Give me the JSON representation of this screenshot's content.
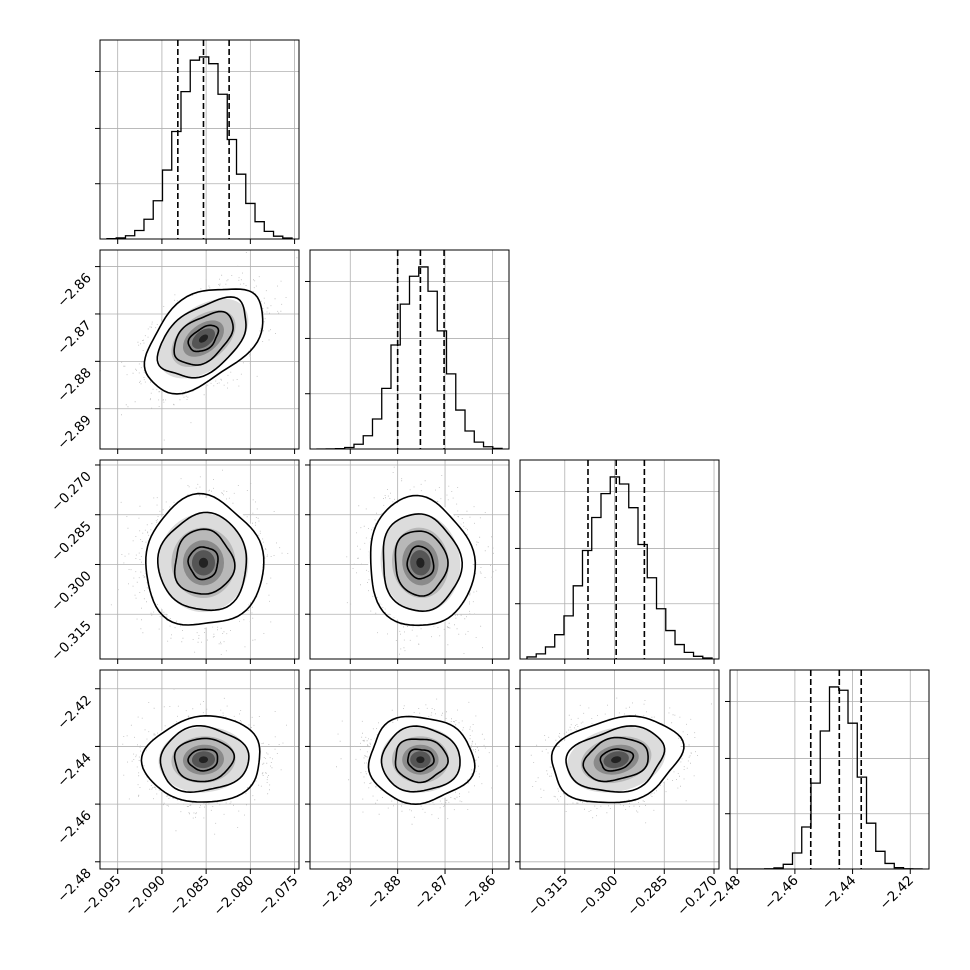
{
  "chart_data": {
    "type": "corner",
    "title": "",
    "parameters": [
      {
        "mean": -2.0853,
        "sigma": 0.0029,
        "quantiles": [
          -2.0882,
          -2.0853,
          -2.0824
        ],
        "range": [
          -2.097,
          -2.0745
        ],
        "ticks": [
          -2.095,
          -2.09,
          -2.085,
          -2.08,
          -2.075
        ],
        "tick_labels": [
          "−2.095",
          "−2.090",
          "−2.085",
          "−2.080",
          "−2.075"
        ]
      },
      {
        "mean": -2.8752,
        "sigma": 0.0048,
        "quantiles": [
          -2.88,
          -2.8752,
          -2.8702
        ],
        "range": [
          -2.8985,
          -2.8565
        ],
        "ticks": [
          -2.89,
          -2.88,
          -2.87,
          -2.86
        ],
        "tick_labels": [
          "−2.89",
          "−2.88",
          "−2.87",
          "−2.86"
        ]
      },
      {
        "mean": -0.2995,
        "sigma": 0.0085,
        "quantiles": [
          -0.308,
          -0.2995,
          -0.291
        ],
        "range": [
          -0.3285,
          -0.2685
        ],
        "ticks": [
          -0.315,
          -0.3,
          -0.285,
          -0.27
        ],
        "tick_labels": [
          "−0.315",
          "−0.300",
          "−0.285",
          "−0.270"
        ]
      },
      {
        "mean": -2.4446,
        "sigma": 0.0065,
        "quantiles": [
          -2.4545,
          -2.4446,
          -2.437
        ],
        "range": [
          -2.4825,
          -2.4135
        ],
        "ticks": [
          -2.48,
          -2.46,
          -2.44,
          -2.42
        ],
        "tick_labels": [
          "−2.48",
          "−2.46",
          "−2.44",
          "−2.42"
        ]
      }
    ],
    "correlations": [
      {
        "row": 1,
        "col": 0,
        "rho": 0.45
      },
      {
        "row": 2,
        "col": 0,
        "rho": 0.0
      },
      {
        "row": 2,
        "col": 1,
        "rho": -0.05
      },
      {
        "row": 3,
        "col": 0,
        "rho": 0.05
      },
      {
        "row": 3,
        "col": 1,
        "rho": 0.0
      },
      {
        "row": 3,
        "col": 2,
        "rho": 0.2
      }
    ],
    "histogram_bins": 20,
    "contour_levels_sigma": [
      0.5,
      1.0,
      1.5,
      2.0
    ],
    "grid": true,
    "colors": {
      "line": "#000000",
      "grid": "#b0b0b0",
      "points": "#bfbfbf"
    }
  }
}
